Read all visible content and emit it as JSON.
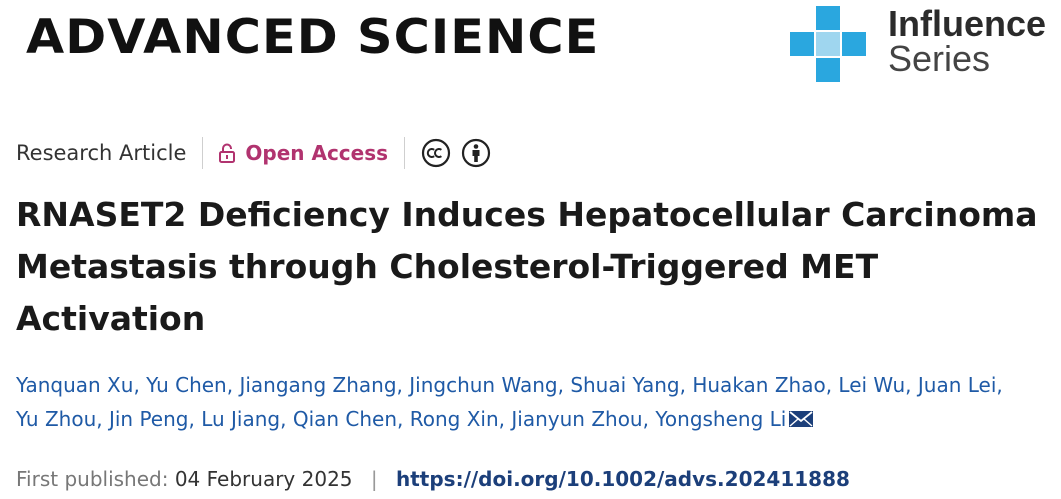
{
  "masthead": {
    "journal_name": "ADVANCED SCIENCE",
    "series_line1": "Influence",
    "series_line2": "Series",
    "series_accent_color": "#2aa7df"
  },
  "meta": {
    "article_type": "Research Article",
    "access_label": "Open Access",
    "access_color": "#b1336f",
    "license_icons": [
      "creative-commons-icon",
      "attribution-icon"
    ]
  },
  "article": {
    "title": "RNASET2 Deficiency Induces Hepatocellular Carcinoma Metastasis through Cholesterol-Triggered MET Activation",
    "authors": [
      "Yanquan Xu",
      "Yu Chen",
      "Jiangang Zhang",
      "Jingchun Wang",
      "Shuai Yang",
      "Huakan Zhao",
      "Lei Wu",
      "Juan Lei",
      "Yu Zhou",
      "Jin Peng",
      "Lu Jiang",
      "Qian Chen",
      "Rong Xin",
      "Jianyun Zhou",
      "Yongsheng Li"
    ],
    "author_link_color": "#1f5aa6"
  },
  "publication": {
    "first_published_label": "First published:",
    "date": "04 February 2025",
    "separator": "|",
    "doi": "https://doi.org/10.1002/advs.202411888"
  }
}
